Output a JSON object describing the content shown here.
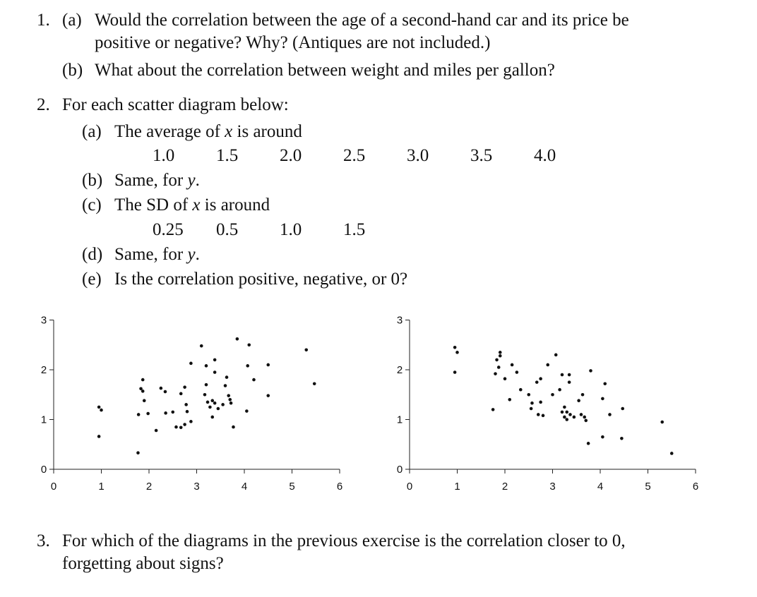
{
  "questions": {
    "q1": {
      "number": "1.",
      "a_label": "(a)",
      "a_line1": "Would the correlation between the age of a second-hand car and its price be",
      "a_line2": "positive or negative? Why? (Antiques are not included.)",
      "b_label": "(b)",
      "b_text": "What about the correlation between weight and miles per gallon?"
    },
    "q2": {
      "number": "2.",
      "intro": "For each scatter diagram below:",
      "a_label": "(a)",
      "a_text_pre": "The average of ",
      "a_var": "x",
      "a_text_post": " is around",
      "a_options": [
        "1.0",
        "1.5",
        "2.0",
        "2.5",
        "3.0",
        "3.5",
        "4.0"
      ],
      "b_label": "(b)",
      "b_text_pre": "Same, for ",
      "b_var": "y",
      "b_text_post": ".",
      "c_label": "(c)",
      "c_text_pre": "The SD of ",
      "c_var": "x",
      "c_text_post": " is around",
      "c_options": [
        "0.25",
        "0.5",
        "1.0",
        "1.5"
      ],
      "d_label": "(d)",
      "d_text_pre": "Same, for ",
      "d_var": "y",
      "d_text_post": ".",
      "e_label": "(e)",
      "e_text": "Is the correlation positive, negative, or 0?"
    },
    "q3": {
      "number": "3.",
      "line1": "For which of the diagrams in the previous exercise is the correlation closer to 0,",
      "line2": "forgetting about signs?"
    }
  },
  "chart_data": [
    {
      "type": "scatter",
      "title": "",
      "xlabel": "",
      "ylabel": "",
      "xlim": [
        0,
        6
      ],
      "ylim": [
        0,
        3
      ],
      "x_ticks": [
        "0",
        "1",
        "2",
        "3",
        "4",
        "5",
        "6"
      ],
      "y_ticks": [
        "0",
        "1",
        "2",
        "3"
      ],
      "grid": false,
      "points": [
        [
          0.95,
          1.25
        ],
        [
          1.0,
          1.19
        ],
        [
          0.95,
          0.66
        ],
        [
          1.77,
          0.33
        ],
        [
          1.78,
          1.1
        ],
        [
          1.83,
          1.62
        ],
        [
          1.87,
          1.8
        ],
        [
          1.87,
          1.57
        ],
        [
          1.9,
          1.38
        ],
        [
          1.98,
          1.12
        ],
        [
          2.15,
          0.78
        ],
        [
          2.25,
          1.63
        ],
        [
          2.34,
          1.56
        ],
        [
          2.35,
          1.13
        ],
        [
          2.5,
          1.15
        ],
        [
          2.57,
          0.85
        ],
        [
          2.67,
          1.52
        ],
        [
          2.67,
          0.84
        ],
        [
          2.75,
          1.65
        ],
        [
          2.75,
          0.9
        ],
        [
          2.78,
          1.3
        ],
        [
          2.8,
          1.16
        ],
        [
          2.88,
          0.96
        ],
        [
          2.88,
          2.13
        ],
        [
          3.1,
          2.48
        ],
        [
          3.17,
          1.5
        ],
        [
          3.2,
          1.7
        ],
        [
          3.2,
          2.08
        ],
        [
          3.23,
          1.35
        ],
        [
          3.28,
          1.25
        ],
        [
          3.33,
          1.05
        ],
        [
          3.33,
          1.38
        ],
        [
          3.38,
          2.2
        ],
        [
          3.38,
          1.95
        ],
        [
          3.38,
          1.33
        ],
        [
          3.45,
          1.22
        ],
        [
          3.55,
          1.3
        ],
        [
          3.6,
          1.68
        ],
        [
          3.63,
          1.85
        ],
        [
          3.67,
          1.48
        ],
        [
          3.7,
          1.4
        ],
        [
          3.72,
          1.33
        ],
        [
          3.77,
          0.85
        ],
        [
          3.85,
          2.62
        ],
        [
          4.05,
          1.17
        ],
        [
          4.07,
          2.08
        ],
        [
          4.1,
          2.5
        ],
        [
          4.2,
          1.8
        ],
        [
          4.5,
          2.1
        ],
        [
          4.5,
          1.48
        ],
        [
          5.3,
          2.4
        ],
        [
          5.47,
          1.72
        ]
      ]
    },
    {
      "type": "scatter",
      "title": "",
      "xlabel": "",
      "ylabel": "",
      "xlim": [
        0,
        6
      ],
      "ylim": [
        0,
        3
      ],
      "x_ticks": [
        "0",
        "1",
        "2",
        "3",
        "4",
        "5",
        "6"
      ],
      "y_ticks": [
        "0",
        "1",
        "2",
        "3"
      ],
      "grid": false,
      "points": [
        [
          0.95,
          2.45
        ],
        [
          1.0,
          2.35
        ],
        [
          0.95,
          1.95
        ],
        [
          1.75,
          1.2
        ],
        [
          1.8,
          1.92
        ],
        [
          1.83,
          2.2
        ],
        [
          1.87,
          2.05
        ],
        [
          1.9,
          2.35
        ],
        [
          1.9,
          2.28
        ],
        [
          2.0,
          1.82
        ],
        [
          2.1,
          1.4
        ],
        [
          2.15,
          2.1
        ],
        [
          2.25,
          1.95
        ],
        [
          2.33,
          1.6
        ],
        [
          2.5,
          1.5
        ],
        [
          2.55,
          1.22
        ],
        [
          2.57,
          1.33
        ],
        [
          2.67,
          1.75
        ],
        [
          2.7,
          1.1
        ],
        [
          2.75,
          1.82
        ],
        [
          2.75,
          1.35
        ],
        [
          2.8,
          1.08
        ],
        [
          2.9,
          2.1
        ],
        [
          3.0,
          1.5
        ],
        [
          3.07,
          2.3
        ],
        [
          3.15,
          1.6
        ],
        [
          3.2,
          1.9
        ],
        [
          3.2,
          1.15
        ],
        [
          3.25,
          1.05
        ],
        [
          3.25,
          1.25
        ],
        [
          3.3,
          1.0
        ],
        [
          3.3,
          1.15
        ],
        [
          3.35,
          1.75
        ],
        [
          3.35,
          1.9
        ],
        [
          3.37,
          1.1
        ],
        [
          3.45,
          1.05
        ],
        [
          3.55,
          1.38
        ],
        [
          3.6,
          1.1
        ],
        [
          3.63,
          1.5
        ],
        [
          3.67,
          1.05
        ],
        [
          3.7,
          0.98
        ],
        [
          3.75,
          0.52
        ],
        [
          3.8,
          1.98
        ],
        [
          4.05,
          0.65
        ],
        [
          4.05,
          1.42
        ],
        [
          4.1,
          1.72
        ],
        [
          4.2,
          1.1
        ],
        [
          4.45,
          0.62
        ],
        [
          4.47,
          1.22
        ],
        [
          5.3,
          0.95
        ],
        [
          5.5,
          0.32
        ]
      ]
    }
  ]
}
